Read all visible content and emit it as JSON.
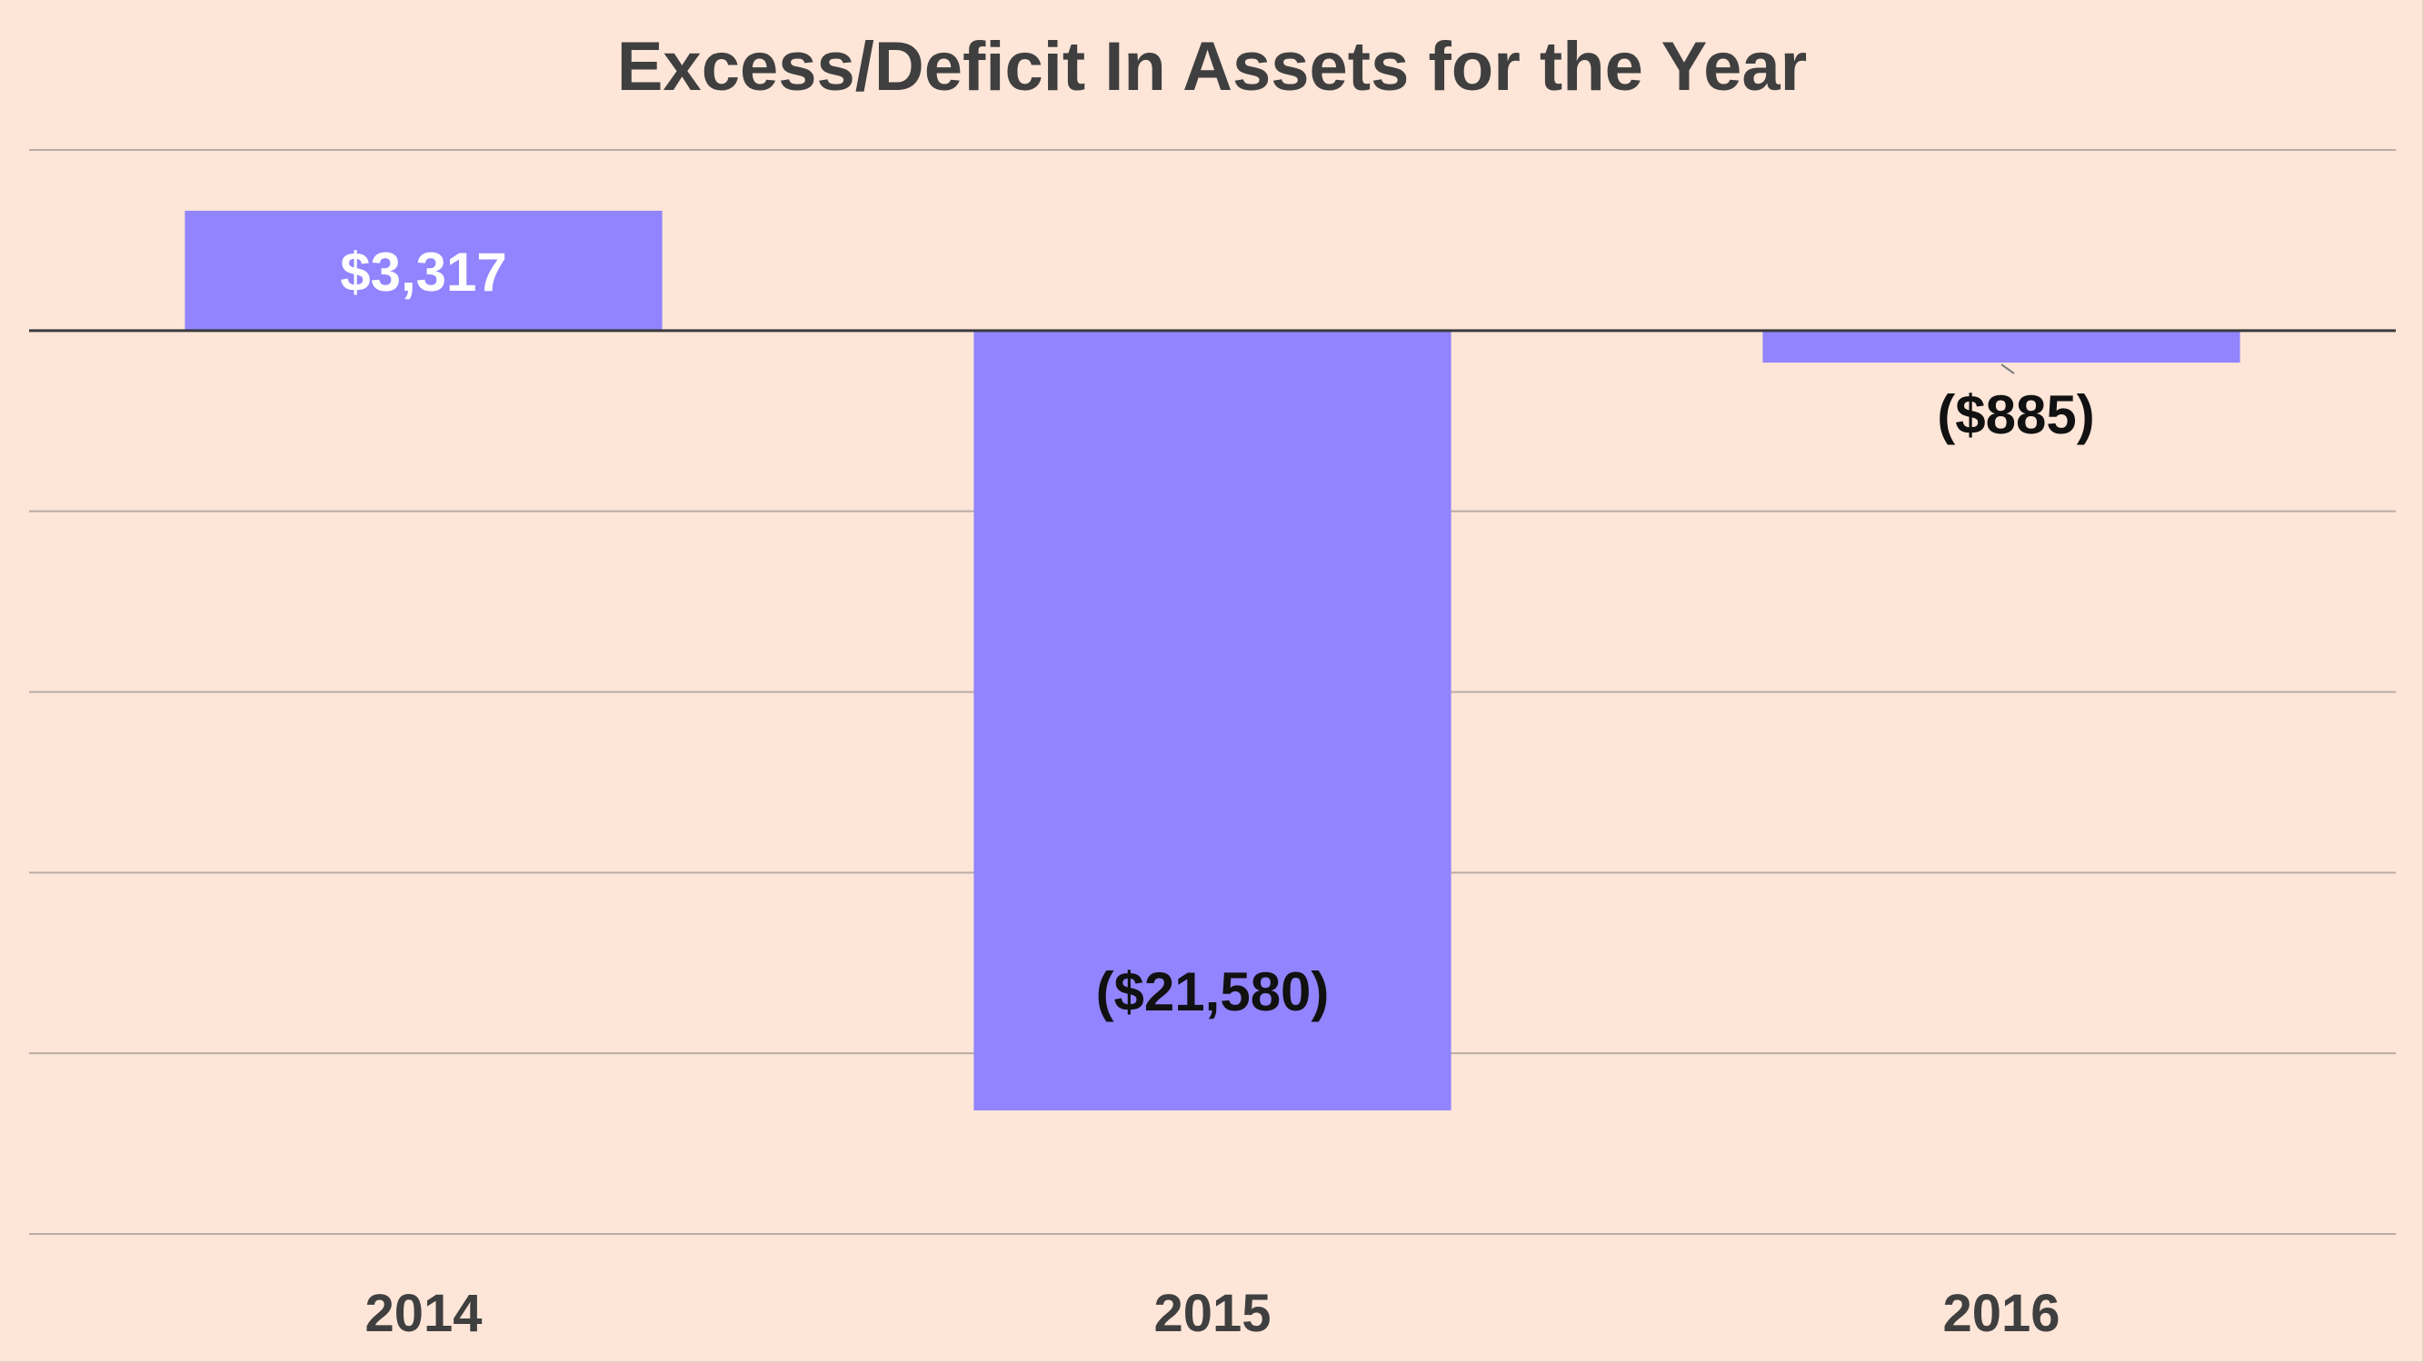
{
  "chart_data": {
    "type": "bar",
    "title": "Excess/Deficit In Assets for the Year",
    "categories": [
      "2014",
      "2015",
      "2016"
    ],
    "values": [
      3317,
      -21580,
      -885
    ],
    "data_labels": [
      "$3,317",
      "($21,580)",
      "($885)"
    ],
    "xlabel": "",
    "ylabel": "",
    "ylim": [
      -25000,
      5000
    ],
    "grid": true,
    "legend": "none",
    "colors": {
      "bar": "#9184fe",
      "background": "#fde5d8",
      "gridline": "#b9aca5",
      "zero_line": "#3a3a3a",
      "label_inside_light": "#ffffff",
      "label_dark": "#111111",
      "title": "#3f3f3f"
    }
  }
}
